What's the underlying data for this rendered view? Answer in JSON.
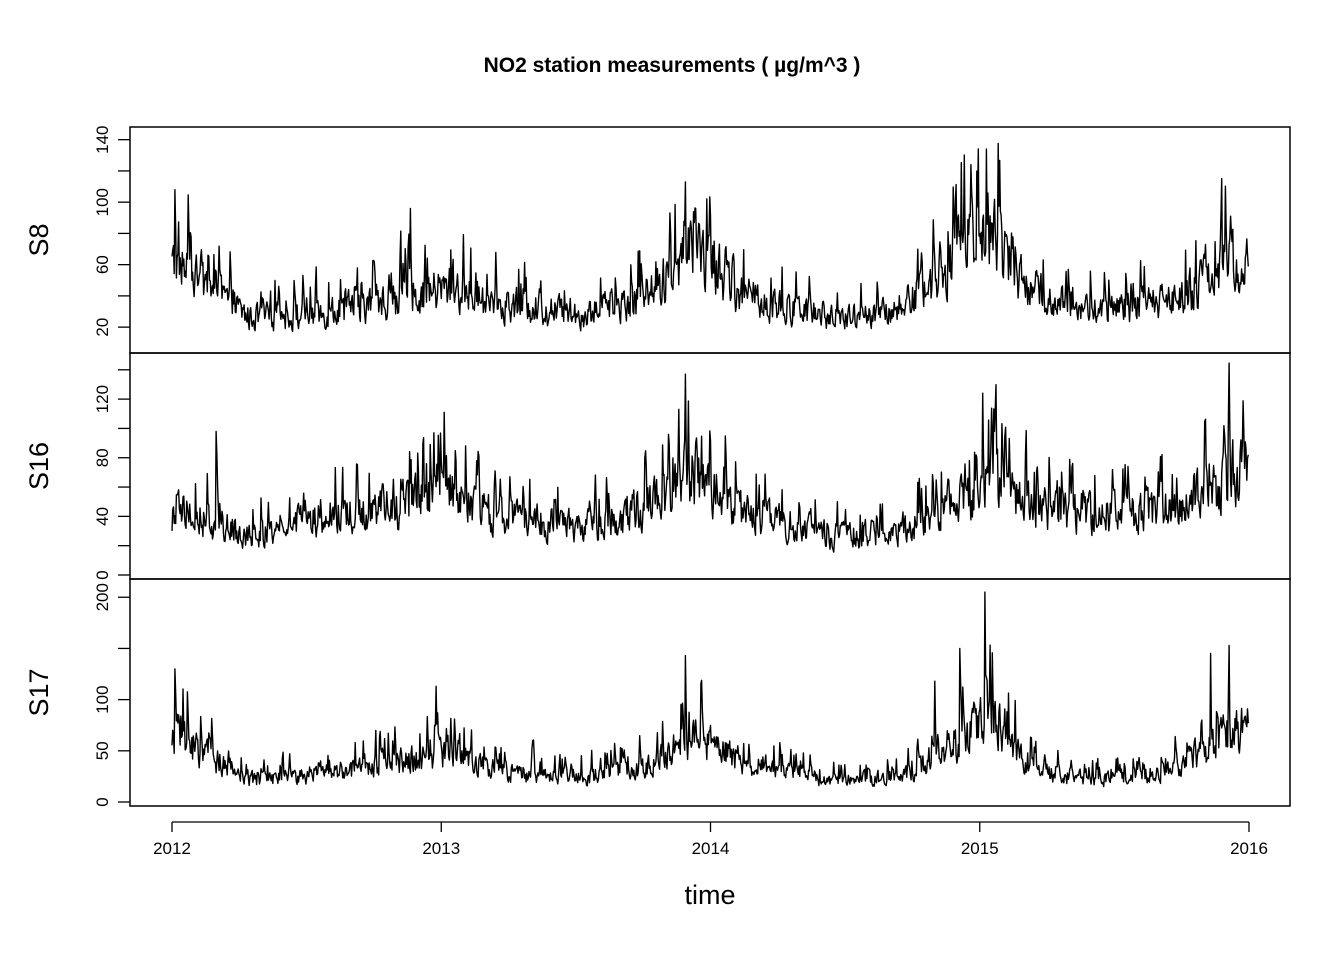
{
  "chart_data": {
    "type": "line",
    "title": "NO2 station measurements  ( µg/m^3 )",
    "xlabel": "time",
    "x_start": "2012-01-01",
    "x_end": "2015-12-31",
    "x_step": "1 day",
    "xlim": [
      2012,
      2016
    ],
    "x_ticks": [
      "2012",
      "2013",
      "2014",
      "2015",
      "2016"
    ],
    "grid": false,
    "legend": "none",
    "color": "#000000",
    "panels": [
      {
        "name": "S8",
        "ylim": [
          6,
          143
        ],
        "y_ticks": [
          20,
          40,
          60,
          80,
          100,
          120,
          140
        ],
        "y_tick_labels": [
          "20",
          "",
          "60",
          "",
          "100",
          "",
          "140"
        ],
        "seasonal_profile": [
          {
            "x": "2012-01",
            "level": 58
          },
          {
            "x": "2012-04",
            "level": 26
          },
          {
            "x": "2012-07",
            "level": 28
          },
          {
            "x": "2012-10",
            "level": 37
          },
          {
            "x": "2013-01",
            "level": 45
          },
          {
            "x": "2013-03",
            "level": 35
          },
          {
            "x": "2013-07",
            "level": 28
          },
          {
            "x": "2013-10",
            "level": 42
          },
          {
            "x": "2013-12",
            "level": 72
          },
          {
            "x": "2014-02",
            "level": 40
          },
          {
            "x": "2014-06",
            "level": 24
          },
          {
            "x": "2014-09",
            "level": 30
          },
          {
            "x": "2014-11",
            "level": 60
          },
          {
            "x": "2015-01",
            "level": 85
          },
          {
            "x": "2015-03",
            "level": 40
          },
          {
            "x": "2015-06",
            "level": 30
          },
          {
            "x": "2015-09",
            "level": 36
          },
          {
            "x": "2015-12",
            "level": 62
          }
        ],
        "peaks": [
          {
            "x": "2012-01-05",
            "y": 108
          },
          {
            "x": "2012-11-20",
            "y": 96
          },
          {
            "x": "2013-11-28",
            "y": 113
          },
          {
            "x": "2014-12-20",
            "y": 124
          },
          {
            "x": "2015-01-10",
            "y": 134
          },
          {
            "x": "2015-11-25",
            "y": 115
          }
        ]
      },
      {
        "name": "S16",
        "ylim": [
          0,
          146
        ],
        "y_ticks": [
          0,
          20,
          40,
          60,
          80,
          100,
          120,
          140
        ],
        "y_tick_labels": [
          "0",
          "",
          "40",
          "",
          "80",
          "",
          "120",
          ""
        ],
        "seasonal_profile": [
          {
            "x": "2012-01",
            "level": 42
          },
          {
            "x": "2012-04",
            "level": 28
          },
          {
            "x": "2012-07",
            "level": 38
          },
          {
            "x": "2012-10",
            "level": 45
          },
          {
            "x": "2013-01",
            "level": 55
          },
          {
            "x": "2013-03",
            "level": 40
          },
          {
            "x": "2013-07",
            "level": 32
          },
          {
            "x": "2013-10",
            "level": 48
          },
          {
            "x": "2013-12",
            "level": 70
          },
          {
            "x": "2014-02",
            "level": 42
          },
          {
            "x": "2014-06",
            "level": 26
          },
          {
            "x": "2014-09",
            "level": 30
          },
          {
            "x": "2014-11",
            "level": 45
          },
          {
            "x": "2015-01",
            "level": 65
          },
          {
            "x": "2015-03",
            "level": 45
          },
          {
            "x": "2015-06",
            "level": 40
          },
          {
            "x": "2015-09",
            "level": 45
          },
          {
            "x": "2015-12",
            "level": 70
          }
        ],
        "peaks": [
          {
            "x": "2012-03-01",
            "y": 98
          },
          {
            "x": "2013-01-05",
            "y": 111
          },
          {
            "x": "2013-11-28",
            "y": 137
          },
          {
            "x": "2015-01-05",
            "y": 124
          },
          {
            "x": "2015-12-05",
            "y": 145
          }
        ]
      },
      {
        "name": "S17",
        "ylim": [
          0,
          210
        ],
        "y_ticks": [
          0,
          50,
          100,
          150,
          200
        ],
        "y_tick_labels": [
          "0",
          "50",
          "100",
          "",
          "200"
        ],
        "seasonal_profile": [
          {
            "x": "2012-01",
            "level": 62
          },
          {
            "x": "2012-04",
            "level": 22
          },
          {
            "x": "2012-07",
            "level": 25
          },
          {
            "x": "2012-10",
            "level": 38
          },
          {
            "x": "2013-01",
            "level": 48
          },
          {
            "x": "2013-03",
            "level": 30
          },
          {
            "x": "2013-07",
            "level": 25
          },
          {
            "x": "2013-10",
            "level": 38
          },
          {
            "x": "2013-12",
            "level": 65
          },
          {
            "x": "2014-02",
            "level": 40
          },
          {
            "x": "2014-06",
            "level": 20
          },
          {
            "x": "2014-09",
            "level": 25
          },
          {
            "x": "2014-11",
            "level": 45
          },
          {
            "x": "2015-01",
            "level": 90
          },
          {
            "x": "2015-03",
            "level": 30
          },
          {
            "x": "2015-06",
            "level": 22
          },
          {
            "x": "2015-09",
            "level": 30
          },
          {
            "x": "2015-12",
            "level": 70
          }
        ],
        "peaks": [
          {
            "x": "2012-01-05",
            "y": 130
          },
          {
            "x": "2012-12-25",
            "y": 113
          },
          {
            "x": "2013-11-28",
            "y": 143
          },
          {
            "x": "2014-11-01",
            "y": 118
          },
          {
            "x": "2014-12-05",
            "y": 150
          },
          {
            "x": "2015-01-08",
            "y": 205
          },
          {
            "x": "2015-11-10",
            "y": 145
          },
          {
            "x": "2015-12-05",
            "y": 153
          }
        ]
      }
    ]
  }
}
